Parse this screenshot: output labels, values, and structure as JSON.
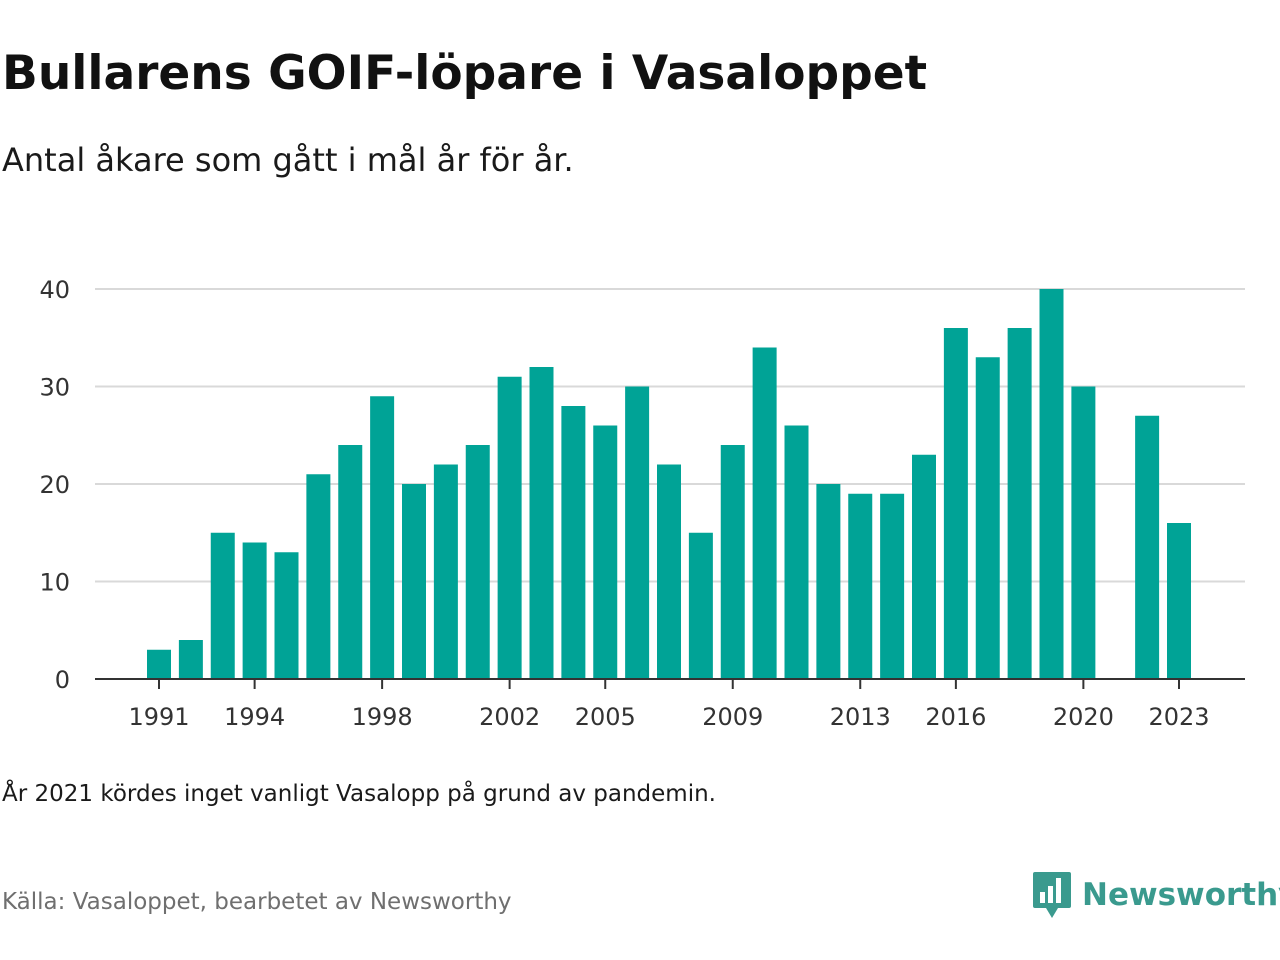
{
  "title": "Bullarens GOIF-löpare i Vasaloppet",
  "subtitle": "Antal åkare som gått i mål år för år.",
  "note": "År 2021 kördes inget vanligt Vasalopp på grund av pandemin.",
  "source": "Källa: Vasaloppet, bearbetet av Newsworthy",
  "brand": "Newsworthy",
  "logo_icon": "bar-chart-speech-bubble-icon",
  "colors": {
    "bar": "#00a396",
    "grid": "#d9d9d9",
    "axis": "#333333",
    "brand": "#3a9a8e"
  },
  "chart_data": {
    "type": "bar",
    "title": "Bullarens GOIF-löpare i Vasaloppet",
    "subtitle": "Antal åkare som gått i mål år för år.",
    "xlabel": "",
    "ylabel": "",
    "x": [
      1991,
      1992,
      1993,
      1994,
      1995,
      1996,
      1997,
      1998,
      1999,
      2000,
      2001,
      2002,
      2003,
      2004,
      2005,
      2006,
      2007,
      2008,
      2009,
      2010,
      2011,
      2012,
      2013,
      2014,
      2015,
      2016,
      2017,
      2018,
      2019,
      2020,
      2021,
      2022,
      2023
    ],
    "values": [
      3,
      4,
      15,
      14,
      13,
      21,
      24,
      29,
      20,
      22,
      24,
      31,
      32,
      28,
      26,
      30,
      22,
      15,
      24,
      34,
      26,
      20,
      19,
      19,
      23,
      36,
      33,
      36,
      40,
      30,
      null,
      27,
      16
    ],
    "x_tick_labels": [
      "1991",
      "1994",
      "1998",
      "2002",
      "2005",
      "2009",
      "2013",
      "2016",
      "2020",
      "2023"
    ],
    "y_ticks": [
      0,
      10,
      20,
      30,
      40
    ],
    "ylim": [
      0,
      40
    ],
    "grid": true,
    "legend": "none"
  }
}
